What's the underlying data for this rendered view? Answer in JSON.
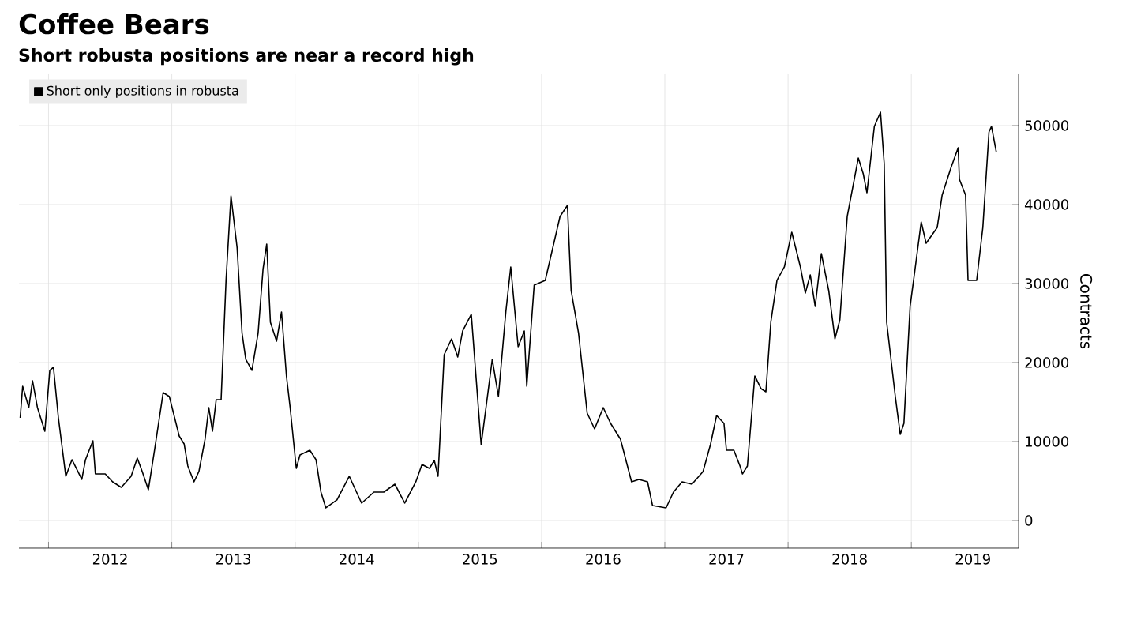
{
  "chart_data": {
    "type": "line",
    "title": "Coffee Bears",
    "subtitle": "Short robusta positions are near a record high",
    "ylabel": "Contracts",
    "series": [
      {
        "name": "Short only positions in robusta",
        "color": "#000000",
        "x": [
          2011.77,
          2011.79,
          2011.84,
          2011.87,
          2011.91,
          2011.97,
          2012.01,
          2012.04,
          2012.08,
          2012.14,
          2012.19,
          2012.27,
          2012.3,
          2012.36,
          2012.38,
          2012.46,
          2012.52,
          2012.59,
          2012.67,
          2012.72,
          2012.76,
          2012.81,
          2012.86,
          2012.93,
          2012.98,
          2013.06,
          2013.1,
          2013.13,
          2013.18,
          2013.22,
          2013.27,
          2013.3,
          2013.33,
          2013.36,
          2013.4,
          2013.44,
          2013.48,
          2013.53,
          2013.57,
          2013.6,
          2013.65,
          2013.7,
          2013.74,
          2013.77,
          2013.8,
          2013.85,
          2013.89,
          2013.93,
          2013.96,
          2014.01,
          2014.04,
          2014.12,
          2014.17,
          2014.21,
          2014.25,
          2014.34,
          2014.44,
          2014.54,
          2014.64,
          2014.72,
          2014.81,
          2014.89,
          2014.98,
          2015.03,
          2015.09,
          2015.13,
          2015.16,
          2015.21,
          2015.27,
          2015.32,
          2015.36,
          2015.43,
          2015.51,
          2015.6,
          2015.65,
          2015.71,
          2015.75,
          2015.81,
          2015.86,
          2015.88,
          2015.94,
          2016.03,
          2016.15,
          2016.21,
          2016.24,
          2016.3,
          2016.37,
          2016.43,
          2016.5,
          2016.56,
          2016.64,
          2016.73,
          2016.79,
          2016.86,
          2016.9,
          2017.01,
          2017.07,
          2017.14,
          2017.22,
          2017.31,
          2017.37,
          2017.42,
          2017.48,
          2017.5,
          2017.56,
          2017.61,
          2017.63,
          2017.67,
          2017.73,
          2017.78,
          2017.82,
          2017.86,
          2017.91,
          2017.97,
          2018.03,
          2018.1,
          2018.14,
          2018.18,
          2018.22,
          2018.27,
          2018.33,
          2018.38,
          2018.42,
          2018.48,
          2018.57,
          2018.61,
          2018.64,
          2018.7,
          2018.75,
          2018.78,
          2018.8,
          2018.87,
          2018.91,
          2018.94,
          2018.99,
          2019.03,
          2019.08,
          2019.12,
          2019.21,
          2019.25,
          2019.32,
          2019.38,
          2019.39,
          2019.44,
          2019.46,
          2019.53,
          2019.58,
          2019.63,
          2019.65,
          2019.69
        ],
        "values": [
          13000,
          17000,
          14300,
          17700,
          14300,
          11300,
          19000,
          19400,
          13000,
          5600,
          7700,
          5200,
          7700,
          10100,
          5900,
          5900,
          4900,
          4200,
          5600,
          7900,
          6200,
          3900,
          8900,
          16200,
          15700,
          10700,
          9700,
          6900,
          4900,
          6200,
          10300,
          14300,
          11300,
          15300,
          15300,
          30400,
          41100,
          34500,
          23700,
          20400,
          19000,
          23700,
          31800,
          35000,
          25100,
          22700,
          26400,
          18300,
          14300,
          6600,
          8300,
          8900,
          7700,
          3600,
          1600,
          2600,
          5600,
          2200,
          3600,
          3600,
          4600,
          2200,
          4900,
          7100,
          6600,
          7600,
          5600,
          21000,
          23000,
          20700,
          24000,
          26100,
          9600,
          20400,
          15700,
          26400,
          32100,
          22000,
          24000,
          17000,
          29800,
          30400,
          38500,
          39900,
          29100,
          23700,
          13600,
          11600,
          14300,
          12300,
          10300,
          4900,
          5200,
          4900,
          1900,
          1600,
          3600,
          4900,
          4600,
          6200,
          9600,
          13300,
          12300,
          8900,
          8900,
          6900,
          5900,
          6900,
          18300,
          16700,
          16300,
          25100,
          30400,
          32100,
          36500,
          32100,
          28800,
          31100,
          27100,
          33800,
          29100,
          23000,
          25400,
          38500,
          45900,
          43900,
          41500,
          49900,
          51700,
          45200,
          25100,
          15700,
          10900,
          12300,
          27100,
          31800,
          37800,
          35100,
          37100,
          41200,
          44600,
          47200,
          43200,
          41200,
          30400,
          30400,
          37100,
          49200,
          49900,
          46600
        ]
      }
    ],
    "xlim": [
      2011.76,
      2019.87
    ],
    "ylim": [
      -3500,
      56500
    ],
    "xticks": [
      {
        "value": 2012,
        "label": null
      },
      {
        "value": 2012.5,
        "label": "2012"
      },
      {
        "value": 2013,
        "label": null
      },
      {
        "value": 2013.5,
        "label": "2013"
      },
      {
        "value": 2014,
        "label": null
      },
      {
        "value": 2014.5,
        "label": "2014"
      },
      {
        "value": 2015,
        "label": null
      },
      {
        "value": 2015.5,
        "label": "2015"
      },
      {
        "value": 2016,
        "label": null
      },
      {
        "value": 2016.5,
        "label": "2016"
      },
      {
        "value": 2017,
        "label": null
      },
      {
        "value": 2017.5,
        "label": "2017"
      },
      {
        "value": 2018,
        "label": null
      },
      {
        "value": 2018.5,
        "label": "2018"
      },
      {
        "value": 2019,
        "label": null
      },
      {
        "value": 2019.5,
        "label": "2019"
      }
    ],
    "yticks": [
      0,
      10000,
      20000,
      30000,
      40000,
      50000
    ],
    "grid": true,
    "legend": "top left",
    "marker": "none",
    "line_style": "solid"
  }
}
